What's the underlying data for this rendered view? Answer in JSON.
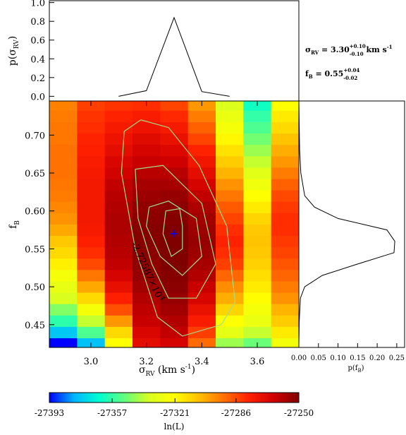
{
  "chart_data": [
    {
      "type": "heatmap",
      "panel": "main",
      "xlabel": "σ_RV (km s^-1)",
      "xlabel_parts": {
        "sym": "σ",
        "sub": "RV",
        "pre_unit": " (km s",
        "sup": "-1",
        "post": ")"
      },
      "ylabel": "f_B",
      "ylabel_parts": {
        "main": "f",
        "sub": "B"
      },
      "xlim": [
        2.85,
        3.75
      ],
      "ylim": [
        0.42,
        0.745
      ],
      "x_ticks": [
        3.0,
        3.2,
        3.4,
        3.6
      ],
      "x_tick_labels": [
        "3.0",
        "3.2",
        "3.4",
        "3.6"
      ],
      "y_ticks": [
        0.45,
        0.5,
        0.55,
        0.6,
        0.65,
        0.7
      ],
      "y_tick_labels": [
        "0.45",
        "0.50",
        "0.55",
        "0.60",
        "0.65",
        "0.70"
      ],
      "x_centers": [
        2.9,
        3.0,
        3.1,
        3.2,
        3.3,
        3.4,
        3.5,
        3.6,
        3.7
      ],
      "y_centers": [
        0.425,
        0.44,
        0.455,
        0.47,
        0.485,
        0.5,
        0.515,
        0.53,
        0.545,
        0.56,
        0.575,
        0.59,
        0.605,
        0.62,
        0.635,
        0.65,
        0.665,
        0.68,
        0.695,
        0.71,
        0.725,
        0.74
      ],
      "values": [
        [
          -27393,
          -27376,
          -27322,
          -27270,
          -27266,
          -27292,
          -27343,
          -27349,
          -27326
        ],
        [
          -27375,
          -27353,
          -27313,
          -27267,
          -27262,
          -27284,
          -27331,
          -27338,
          -27317
        ],
        [
          -27358,
          -27338,
          -27300,
          -27263,
          -27259,
          -27277,
          -27322,
          -27329,
          -27310
        ],
        [
          -27346,
          -27325,
          -27287,
          -27261,
          -27256,
          -27272,
          -27312,
          -27325,
          -27305
        ],
        [
          -27335,
          -27313,
          -27278,
          -27259,
          -27254,
          -27267,
          -27304,
          -27321,
          -27299
        ],
        [
          -27330,
          -27303,
          -27271,
          -27256,
          -27252,
          -27263,
          -27298,
          -27317,
          -27295
        ],
        [
          -27325,
          -27294,
          -27266,
          -27254,
          -27251,
          -27259,
          -27291,
          -27314,
          -27291
        ],
        [
          -27318,
          -27286,
          -27262,
          -27253,
          -27250,
          -27257,
          -27284,
          -27311,
          -27288
        ],
        [
          -27313,
          -27281,
          -27260,
          -27252,
          -27250,
          -27255,
          -27281,
          -27309,
          -27285
        ],
        [
          -27309,
          -27278,
          -27259,
          -27251,
          -27250,
          -27254,
          -27279,
          -27308,
          -27283
        ],
        [
          -27303,
          -27276,
          -27258,
          -27251,
          -27250,
          -27255,
          -27281,
          -27309,
          -27281
        ],
        [
          -27299,
          -27275,
          -27258,
          -27252,
          -27251,
          -27256,
          -27285,
          -27312,
          -27281
        ],
        [
          -27297,
          -27275,
          -27259,
          -27253,
          -27252,
          -27258,
          -27289,
          -27317,
          -27283
        ],
        [
          -27295,
          -27275,
          -27260,
          -27255,
          -27254,
          -27262,
          -27294,
          -27322,
          -27286
        ],
        [
          -27294,
          -27275,
          -27262,
          -27257,
          -27257,
          -27266,
          -27299,
          -27327,
          -27290
        ],
        [
          -27293,
          -27276,
          -27265,
          -27260,
          -27260,
          -27270,
          -27305,
          -27332,
          -27295
        ],
        [
          -27293,
          -27277,
          -27267,
          -27263,
          -27264,
          -27274,
          -27310,
          -27338,
          -27300
        ],
        [
          -27293,
          -27278,
          -27270,
          -27266,
          -27268,
          -27279,
          -27315,
          -27343,
          -27304
        ],
        [
          -27294,
          -27279,
          -27273,
          -27269,
          -27272,
          -27285,
          -27320,
          -27348,
          -27308
        ],
        [
          -27294,
          -27281,
          -27276,
          -27273,
          -27276,
          -27290,
          -27325,
          -27353,
          -27313
        ],
        [
          -27295,
          -27282,
          -27279,
          -27277,
          -27280,
          -27295,
          -27329,
          -27357,
          -27317
        ],
        [
          -27296,
          -27284,
          -27282,
          -27281,
          -27285,
          -27300,
          -27334,
          -27362,
          -27322
        ]
      ],
      "best_fit": {
        "x": 3.3,
        "y": 0.57,
        "marker": "+"
      },
      "contours": [
        [
          [
            3.27,
            0.6
          ],
          [
            3.32,
            0.603
          ],
          [
            3.33,
            0.58
          ],
          [
            3.33,
            0.55
          ],
          [
            3.29,
            0.54
          ],
          [
            3.26,
            0.57
          ],
          [
            3.27,
            0.6
          ]
        ],
        [
          [
            3.21,
            0.605
          ],
          [
            3.28,
            0.613
          ],
          [
            3.38,
            0.59
          ],
          [
            3.4,
            0.54
          ],
          [
            3.33,
            0.515
          ],
          [
            3.25,
            0.54
          ],
          [
            3.2,
            0.58
          ],
          [
            3.21,
            0.605
          ]
        ],
        [
          [
            3.16,
            0.655
          ],
          [
            3.26,
            0.66
          ],
          [
            3.4,
            0.61
          ],
          [
            3.45,
            0.53
          ],
          [
            3.38,
            0.485
          ],
          [
            3.28,
            0.485
          ],
          [
            3.22,
            0.53
          ],
          [
            3.17,
            0.59
          ],
          [
            3.16,
            0.655
          ]
        ],
        [
          [
            3.12,
            0.705
          ],
          [
            3.18,
            0.72
          ],
          [
            3.28,
            0.71
          ],
          [
            3.39,
            0.66
          ],
          [
            3.49,
            0.58
          ],
          [
            3.52,
            0.48
          ],
          [
            3.47,
            0.45
          ],
          [
            3.33,
            0.435
          ],
          [
            3.24,
            0.46
          ],
          [
            3.16,
            0.55
          ],
          [
            3.11,
            0.65
          ],
          [
            3.12,
            0.705
          ]
        ]
      ],
      "contour_color": "#9fe08a",
      "contour_label": "-2.72587×10^4",
      "contour_label_parts": {
        "mantissa": "-2.72587×10",
        "exp": "4"
      }
    },
    {
      "type": "line",
      "panel": "top-marginal",
      "ylabel": "p(σ_RV)",
      "ylabel_parts": {
        "pre": "p(σ",
        "sub": "RV",
        "post": ")"
      },
      "ylim": [
        -0.05,
        1.02
      ],
      "y_ticks": [
        0.0,
        0.2,
        0.4,
        0.6,
        0.8,
        1.0
      ],
      "y_tick_labels": [
        "0.0",
        "0.2",
        "0.4",
        "0.6",
        "0.8",
        "1.0"
      ],
      "x": [
        3.1,
        3.2,
        3.3,
        3.4,
        3.5
      ],
      "y": [
        0.0,
        0.06,
        0.84,
        0.05,
        0.0
      ]
    },
    {
      "type": "line",
      "panel": "right-marginal",
      "xlabel": "p(f_B)",
      "xlabel_parts": {
        "pre": "p(f",
        "sub": "B",
        "post": ")"
      },
      "xlim": [
        0.0,
        0.27
      ],
      "x_ticks": [
        0.0,
        0.05,
        0.1,
        0.15,
        0.2,
        0.25
      ],
      "x_tick_labels": [
        "0.00",
        "0.05",
        "0.10",
        "0.15",
        "0.20",
        "0.25"
      ],
      "fB": [
        0.425,
        0.455,
        0.485,
        0.5,
        0.515,
        0.53,
        0.545,
        0.56,
        0.575,
        0.59,
        0.605,
        0.62,
        0.65,
        0.68,
        0.71,
        0.745
      ],
      "p": [
        0.0,
        0.001,
        0.004,
        0.015,
        0.06,
        0.15,
        0.243,
        0.245,
        0.225,
        0.1,
        0.04,
        0.015,
        0.005,
        0.002,
        0.001,
        0.0
      ]
    },
    {
      "type": "colorbar",
      "panel": "colorbar",
      "range": [
        -27393,
        -27250
      ],
      "ticks": [
        -27393,
        -27357,
        -27321,
        -27286,
        -27250
      ],
      "tick_labels": [
        "-27393",
        "-27357",
        "-27321",
        "-27286",
        "-27250"
      ],
      "label": "ln(L)",
      "colormap": [
        "#0000ff",
        "#00b4ff",
        "#00ffd0",
        "#60ff80",
        "#d8ff20",
        "#ffff00",
        "#ffc000",
        "#ff7000",
        "#ff2000",
        "#d00000",
        "#800000"
      ]
    }
  ],
  "annotations": {
    "sigma_rv": {
      "label": "σ",
      "label_sub": "RV",
      "eq": " = 3.30",
      "sup": "+0.10",
      "sub": "-0.10",
      "unit": " km s",
      "unit_sup": "-1"
    },
    "f_b": {
      "label": "f",
      "label_sub": "B",
      "eq": " = 0.55",
      "sup": "+0.04",
      "sub": "-0.02"
    }
  }
}
